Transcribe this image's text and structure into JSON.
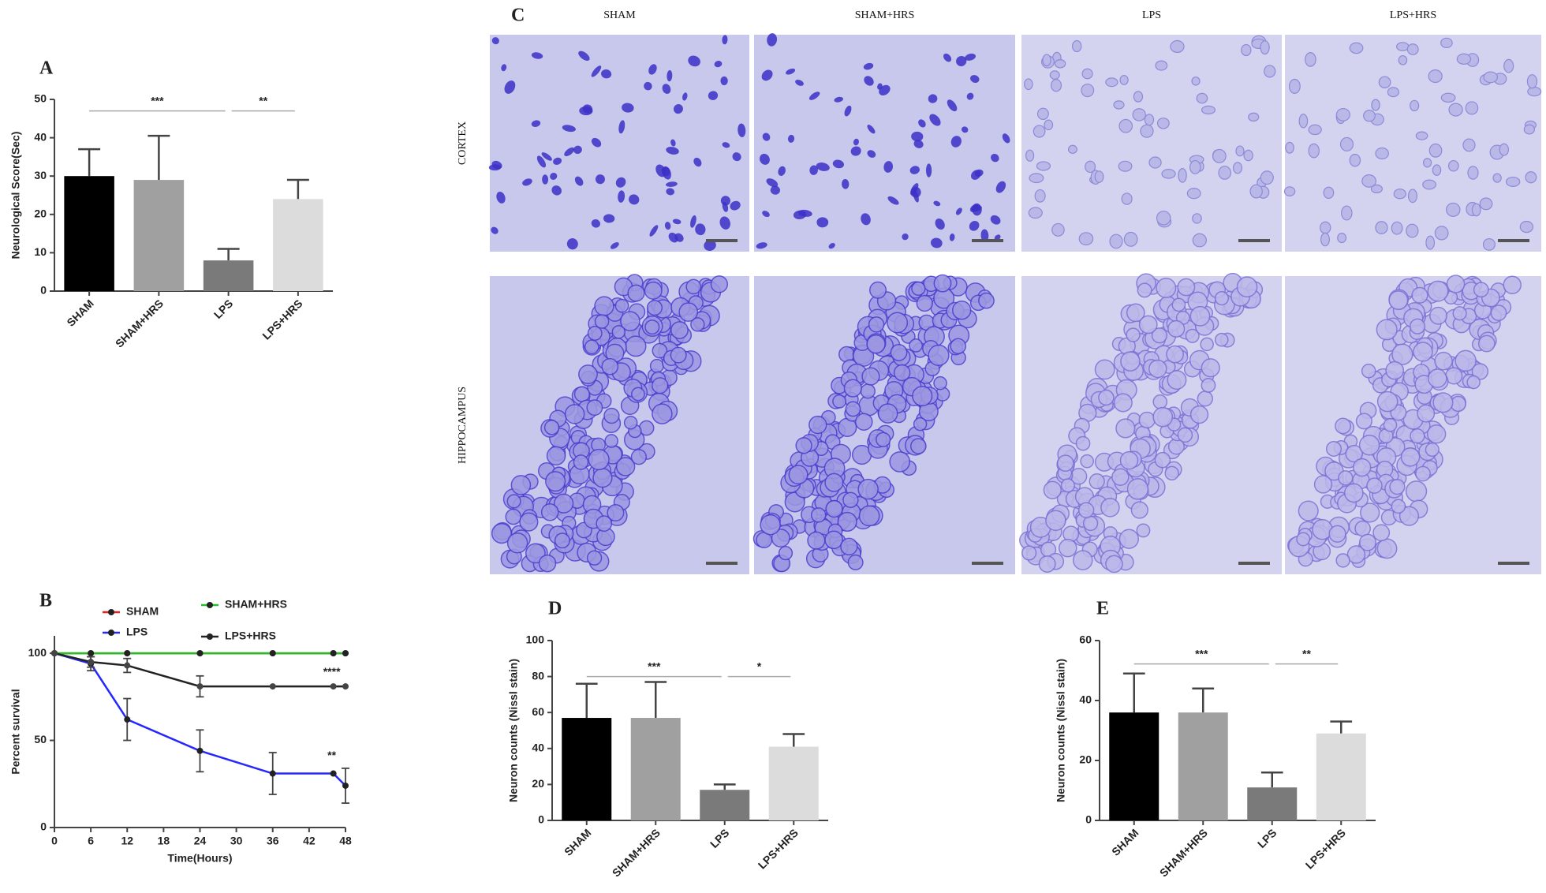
{
  "panel_c": {
    "label": "C",
    "columns": [
      "SHAM",
      "SHAM+HRS",
      "LPS",
      "LPS+HRS"
    ],
    "rows": [
      "CORTEX",
      "HIPPOCAMPUS"
    ]
  },
  "chart_data": [
    {
      "type": "bar",
      "label": "A",
      "ylabel": "Neurological Score(Sec)",
      "categories": [
        "SHAM",
        "SHAM+HRS",
        "LPS",
        "LPS+HRS"
      ],
      "values": [
        30,
        29,
        8,
        24
      ],
      "errors": [
        7,
        11.5,
        3,
        5
      ],
      "colors": [
        "#000000",
        "#a0a0a0",
        "#7a7a7a",
        "#dcdcdc"
      ],
      "ylim": [
        0,
        50
      ],
      "yticks": [
        0,
        10,
        20,
        30,
        40,
        50
      ],
      "annotations": [
        "***",
        "**"
      ]
    },
    {
      "type": "line",
      "label": "B",
      "xlabel": "Time(Hours)",
      "ylabel": "Percent survival",
      "x": [
        0,
        6,
        12,
        24,
        36,
        46,
        48
      ],
      "xlim": [
        0,
        48
      ],
      "xticks": [
        0,
        6,
        12,
        18,
        24,
        30,
        36,
        42,
        48
      ],
      "ylim": [
        0,
        110
      ],
      "yticks": [
        0,
        50,
        100
      ],
      "series": [
        {
          "name": "SHAM",
          "color": "#e8231f",
          "values": [
            100,
            100,
            100,
            100,
            100,
            100,
            100
          ]
        },
        {
          "name": "SHAM+HRS",
          "color": "#22c02a",
          "values": [
            100,
            100,
            100,
            100,
            100,
            100,
            100
          ]
        },
        {
          "name": "LPS",
          "color": "#2626ff",
          "values": [
            100,
            94,
            62,
            44,
            31,
            31,
            24
          ],
          "errors": [
            null,
            4,
            12,
            12,
            12,
            null,
            10
          ]
        },
        {
          "name": "LPS+HRS",
          "color": "#222222",
          "values": [
            100,
            95,
            93,
            81,
            81,
            81,
            81
          ],
          "errors": [
            null,
            3,
            4,
            6,
            null,
            null,
            null
          ]
        }
      ],
      "annotations": [
        "****",
        "**"
      ]
    },
    {
      "type": "bar",
      "label": "D",
      "ylabel": "Neuron counts (Nissl stain)",
      "categories": [
        "SHAM",
        "SHAM+HRS",
        "LPS",
        "LPS+HRS"
      ],
      "values": [
        57,
        57,
        17,
        41
      ],
      "errors": [
        19,
        20,
        3,
        7
      ],
      "colors": [
        "#000000",
        "#a0a0a0",
        "#7a7a7a",
        "#dcdcdc"
      ],
      "ylim": [
        0,
        100
      ],
      "yticks": [
        0,
        20,
        40,
        60,
        80,
        100
      ],
      "annotations": [
        "***",
        "*"
      ]
    },
    {
      "type": "bar",
      "label": "E",
      "ylabel": "Neuron counts (Nissl stain)",
      "categories": [
        "SHAM",
        "SHAM+HRS",
        "LPS",
        "LPS+HRS"
      ],
      "values": [
        36,
        36,
        11,
        29
      ],
      "errors": [
        13,
        8,
        5,
        4
      ],
      "colors": [
        "#000000",
        "#a0a0a0",
        "#7a7a7a",
        "#dcdcdc"
      ],
      "ylim": [
        0,
        60
      ],
      "yticks": [
        0,
        20,
        40,
        60
      ],
      "annotations": [
        "***",
        "**"
      ]
    }
  ]
}
